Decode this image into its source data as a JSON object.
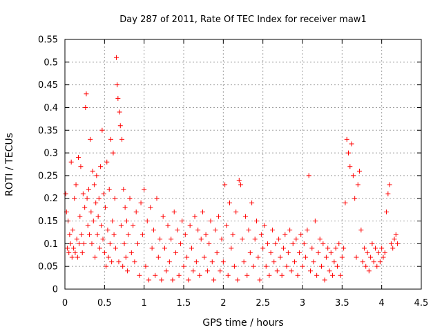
{
  "chart_data": {
    "type": "scatter",
    "title": "Day 287 of 2011, Rate Of TEC Index for receiver maw1",
    "xlabel": "GPS time / hours",
    "ylabel": "ROTI / TECUs",
    "xlim": [
      0,
      4.5
    ],
    "ylim": [
      0,
      0.55
    ],
    "grid": true,
    "marker": "+",
    "color": "#ff0000",
    "xticks": [
      "0",
      "0.5",
      "1",
      "1.5",
      "2",
      "2.5",
      "3",
      "3.5",
      "4",
      "4.5"
    ],
    "yticks": [
      "0",
      "0.05",
      "0.1",
      "0.15",
      "0.2",
      "0.25",
      "0.3",
      "0.35",
      "0.4",
      "0.45",
      "0.5",
      "0.55"
    ],
    "series": [
      {
        "name": "maw1",
        "points": [
          [
            0.01,
            0.21
          ],
          [
            0.02,
            0.17
          ],
          [
            0.03,
            0.09
          ],
          [
            0.04,
            0.15
          ],
          [
            0.05,
            0.08
          ],
          [
            0.06,
            0.12
          ],
          [
            0.07,
            0.1
          ],
          [
            0.08,
            0.28
          ],
          [
            0.09,
            0.07
          ],
          [
            0.1,
            0.13
          ],
          [
            0.11,
            0.09
          ],
          [
            0.12,
            0.2
          ],
          [
            0.13,
            0.08
          ],
          [
            0.14,
            0.23
          ],
          [
            0.15,
            0.11
          ],
          [
            0.16,
            0.07
          ],
          [
            0.17,
            0.29
          ],
          [
            0.18,
            0.1
          ],
          [
            0.19,
            0.16
          ],
          [
            0.2,
            0.27
          ],
          [
            0.21,
            0.12
          ],
          [
            0.22,
            0.08
          ],
          [
            0.23,
            0.21
          ],
          [
            0.24,
            0.1
          ],
          [
            0.25,
            0.18
          ],
          [
            0.26,
            0.4
          ],
          [
            0.27,
            0.43
          ],
          [
            0.28,
            0.2
          ],
          [
            0.29,
            0.14
          ],
          [
            0.3,
            0.22
          ],
          [
            0.31,
            0.12
          ],
          [
            0.32,
            0.33
          ],
          [
            0.33,
            0.17
          ],
          [
            0.34,
            0.1
          ],
          [
            0.35,
            0.26
          ],
          [
            0.36,
            0.15
          ],
          [
            0.37,
            0.23
          ],
          [
            0.38,
            0.07
          ],
          [
            0.39,
            0.19
          ],
          [
            0.4,
            0.25
          ],
          [
            0.41,
            0.12
          ],
          [
            0.42,
            0.16
          ],
          [
            0.43,
            0.2
          ],
          [
            0.44,
            0.09
          ],
          [
            0.45,
            0.27
          ],
          [
            0.46,
            0.14
          ],
          [
            0.47,
            0.35
          ],
          [
            0.48,
            0.11
          ],
          [
            0.49,
            0.21
          ],
          [
            0.5,
            0.08
          ],
          [
            0.51,
            0.18
          ],
          [
            0.52,
            0.05
          ],
          [
            0.53,
            0.28
          ],
          [
            0.54,
            0.13
          ],
          [
            0.55,
            0.07
          ],
          [
            0.56,
            0.22
          ],
          [
            0.57,
            0.1
          ],
          [
            0.58,
            0.33
          ],
          [
            0.59,
            0.06
          ],
          [
            0.6,
            0.15
          ],
          [
            0.61,
            0.3
          ],
          [
            0.62,
            0.12
          ],
          [
            0.63,
            0.2
          ],
          [
            0.64,
            0.09
          ],
          [
            0.65,
            0.51
          ],
          [
            0.66,
            0.45
          ],
          [
            0.67,
            0.42
          ],
          [
            0.68,
            0.06
          ],
          [
            0.69,
            0.39
          ],
          [
            0.7,
            0.36
          ],
          [
            0.71,
            0.14
          ],
          [
            0.72,
            0.33
          ],
          [
            0.73,
            0.05
          ],
          [
            0.74,
            0.22
          ],
          [
            0.75,
            0.1
          ],
          [
            0.76,
            0.18
          ],
          [
            0.77,
            0.07
          ],
          [
            0.78,
            0.15
          ],
          [
            0.79,
            0.04
          ],
          [
            0.8,
            0.12
          ],
          [
            0.82,
            0.2
          ],
          [
            0.84,
            0.08
          ],
          [
            0.86,
            0.14
          ],
          [
            0.88,
            0.06
          ],
          [
            0.9,
            0.17
          ],
          [
            0.92,
            0.1
          ],
          [
            0.94,
            0.03
          ],
          [
            0.96,
            0.19
          ],
          [
            0.98,
            0.12
          ],
          [
            1.0,
            0.22
          ],
          [
            1.02,
            0.05
          ],
          [
            1.04,
            0.15
          ],
          [
            1.06,
            0.02
          ],
          [
            1.08,
            0.18
          ],
          [
            1.1,
            0.09
          ],
          [
            1.12,
            0.13
          ],
          [
            1.14,
            0.03
          ],
          [
            1.16,
            0.2
          ],
          [
            1.18,
            0.07
          ],
          [
            1.2,
            0.11
          ],
          [
            1.22,
            0.02
          ],
          [
            1.24,
            0.16
          ],
          [
            1.26,
            0.09
          ],
          [
            1.28,
            0.04
          ],
          [
            1.3,
            0.14
          ],
          [
            1.32,
            0.06
          ],
          [
            1.34,
            0.11
          ],
          [
            1.36,
            0.02
          ],
          [
            1.38,
            0.17
          ],
          [
            1.4,
            0.08
          ],
          [
            1.42,
            0.13
          ],
          [
            1.44,
            0.03
          ],
          [
            1.46,
            0.1
          ],
          [
            1.48,
            0.15
          ],
          [
            1.5,
            0.05
          ],
          [
            1.52,
            0.12
          ],
          [
            1.54,
            0.07
          ],
          [
            1.56,
            0.02
          ],
          [
            1.58,
            0.14
          ],
          [
            1.6,
            0.09
          ],
          [
            1.62,
            0.04
          ],
          [
            1.64,
            0.16
          ],
          [
            1.66,
            0.06
          ],
          [
            1.68,
            0.13
          ],
          [
            1.7,
            0.03
          ],
          [
            1.72,
            0.11
          ],
          [
            1.74,
            0.17
          ],
          [
            1.76,
            0.07
          ],
          [
            1.78,
            0.12
          ],
          [
            1.8,
            0.04
          ],
          [
            1.82,
            0.1
          ],
          [
            1.84,
            0.15
          ],
          [
            1.86,
            0.06
          ],
          [
            1.88,
            0.02
          ],
          [
            1.9,
            0.13
          ],
          [
            1.92,
            0.08
          ],
          [
            1.94,
            0.16
          ],
          [
            1.96,
            0.04
          ],
          [
            1.98,
            0.11
          ],
          [
            2.0,
            0.06
          ],
          [
            2.02,
            0.23
          ],
          [
            2.04,
            0.14
          ],
          [
            2.06,
            0.03
          ],
          [
            2.08,
            0.19
          ],
          [
            2.1,
            0.09
          ],
          [
            2.12,
            0.12
          ],
          [
            2.14,
            0.05
          ],
          [
            2.16,
            0.17
          ],
          [
            2.18,
            0.02
          ],
          [
            2.2,
            0.24
          ],
          [
            2.22,
            0.23
          ],
          [
            2.24,
            0.11
          ],
          [
            2.26,
            0.06
          ],
          [
            2.28,
            0.16
          ],
          [
            2.3,
            0.03
          ],
          [
            2.32,
            0.13
          ],
          [
            2.34,
            0.08
          ],
          [
            2.36,
            0.19
          ],
          [
            2.38,
            0.05
          ],
          [
            2.4,
            0.11
          ],
          [
            2.42,
            0.15
          ],
          [
            2.44,
            0.07
          ],
          [
            2.46,
            0.02
          ],
          [
            2.48,
            0.12
          ],
          [
            2.5,
            0.09
          ],
          [
            2.52,
            0.14
          ],
          [
            2.54,
            0.05
          ],
          [
            2.56,
            0.1
          ],
          [
            2.58,
            0.03
          ],
          [
            2.6,
            0.08
          ],
          [
            2.62,
            0.13
          ],
          [
            2.64,
            0.06
          ],
          [
            2.66,
            0.1
          ],
          [
            2.68,
            0.04
          ],
          [
            2.7,
            0.11
          ],
          [
            2.72,
            0.07
          ],
          [
            2.74,
            0.03
          ],
          [
            2.76,
            0.09
          ],
          [
            2.78,
            0.12
          ],
          [
            2.8,
            0.05
          ],
          [
            2.82,
            0.08
          ],
          [
            2.84,
            0.13
          ],
          [
            2.86,
            0.04
          ],
          [
            2.88,
            0.1
          ],
          [
            2.9,
            0.06
          ],
          [
            2.92,
            0.11
          ],
          [
            2.94,
            0.03
          ],
          [
            2.96,
            0.08
          ],
          [
            2.98,
            0.12
          ],
          [
            3.0,
            0.05
          ],
          [
            3.02,
            0.1
          ],
          [
            3.04,
            0.07
          ],
          [
            3.06,
            0.13
          ],
          [
            3.08,
            0.25
          ],
          [
            3.1,
            0.04
          ],
          [
            3.12,
            0.09
          ],
          [
            3.14,
            0.06
          ],
          [
            3.16,
            0.15
          ],
          [
            3.18,
            0.03
          ],
          [
            3.2,
            0.08
          ],
          [
            3.22,
            0.11
          ],
          [
            3.24,
            0.05
          ],
          [
            3.26,
            0.1
          ],
          [
            3.28,
            0.02
          ],
          [
            3.3,
            0.07
          ],
          [
            3.32,
            0.09
          ],
          [
            3.34,
            0.04
          ],
          [
            3.36,
            0.08
          ],
          [
            3.38,
            0.03
          ],
          [
            3.4,
            0.06
          ],
          [
            3.42,
            0.09
          ],
          [
            3.44,
            0.05
          ],
          [
            3.46,
            0.1
          ],
          [
            3.48,
            0.03
          ],
          [
            3.5,
            0.07
          ],
          [
            3.52,
            0.09
          ],
          [
            3.54,
            0.19
          ],
          [
            3.56,
            0.33
          ],
          [
            3.58,
            0.3
          ],
          [
            3.6,
            0.27
          ],
          [
            3.62,
            0.32
          ],
          [
            3.64,
            0.25
          ],
          [
            3.66,
            0.2
          ],
          [
            3.68,
            0.07
          ],
          [
            3.7,
            0.23
          ],
          [
            3.72,
            0.26
          ],
          [
            3.74,
            0.13
          ],
          [
            3.76,
            0.06
          ],
          [
            3.78,
            0.09
          ],
          [
            3.8,
            0.05
          ],
          [
            3.82,
            0.08
          ],
          [
            3.84,
            0.04
          ],
          [
            3.86,
            0.07
          ],
          [
            3.88,
            0.1
          ],
          [
            3.9,
            0.06
          ],
          [
            3.92,
            0.09
          ],
          [
            3.94,
            0.05
          ],
          [
            3.96,
            0.08
          ],
          [
            3.98,
            0.06
          ],
          [
            4.0,
            0.09
          ],
          [
            4.02,
            0.07
          ],
          [
            4.04,
            0.08
          ],
          [
            4.06,
            0.17
          ],
          [
            4.08,
            0.21
          ],
          [
            4.1,
            0.23
          ],
          [
            4.12,
            0.1
          ],
          [
            4.14,
            0.09
          ],
          [
            4.16,
            0.11
          ],
          [
            4.18,
            0.12
          ],
          [
            4.2,
            0.1
          ]
        ]
      }
    ]
  }
}
